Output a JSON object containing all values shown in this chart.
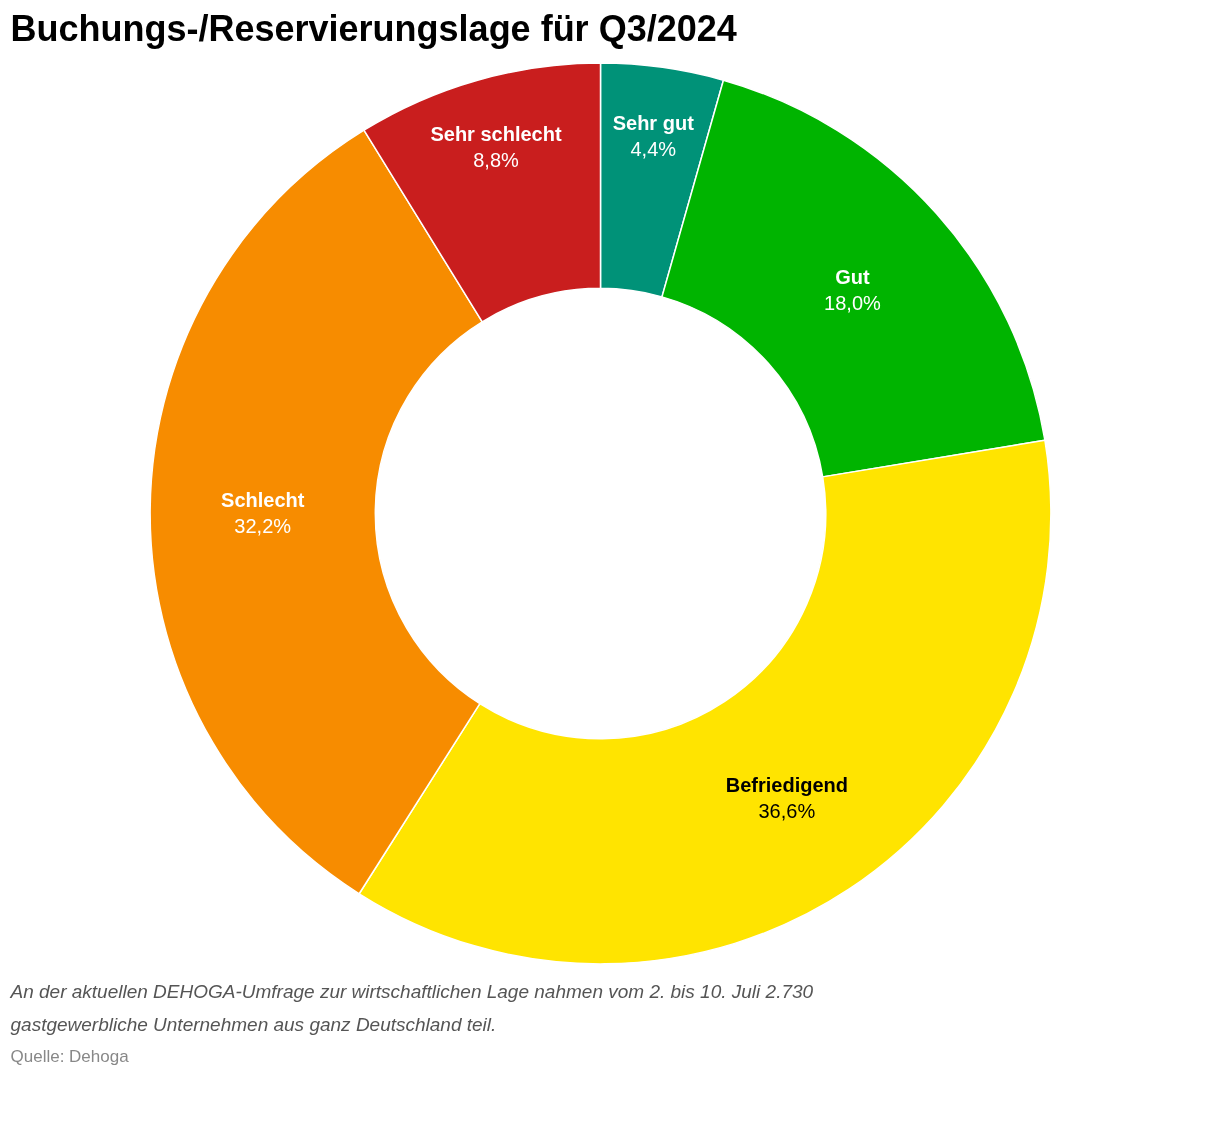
{
  "chart_data": {
    "type": "donut",
    "title": "Buchungs-/Reservierungslage für Q3/2024",
    "categories": [
      "Sehr gut",
      "Gut",
      "Befriedigend",
      "Schlecht",
      "Sehr schlecht"
    ],
    "values": [
      4.4,
      18.0,
      36.6,
      32.2,
      8.8
    ],
    "colors": [
      "#009278",
      "#00b400",
      "#ffe400",
      "#f78c00",
      "#c91e1e"
    ],
    "value_labels": [
      "4,4%",
      "18,0%",
      "36,6%",
      "32,2%",
      "8,8%"
    ],
    "annotations": [
      "An der aktuellen DEHOGA-Umfrage zur wirtschaftlichen Lage nahmen vom 2. bis 10. Juli 2.730 gastgewerbliche Unternehmen aus ganz Deutschland teil.",
      "Quelle: Dehoga"
    ]
  }
}
